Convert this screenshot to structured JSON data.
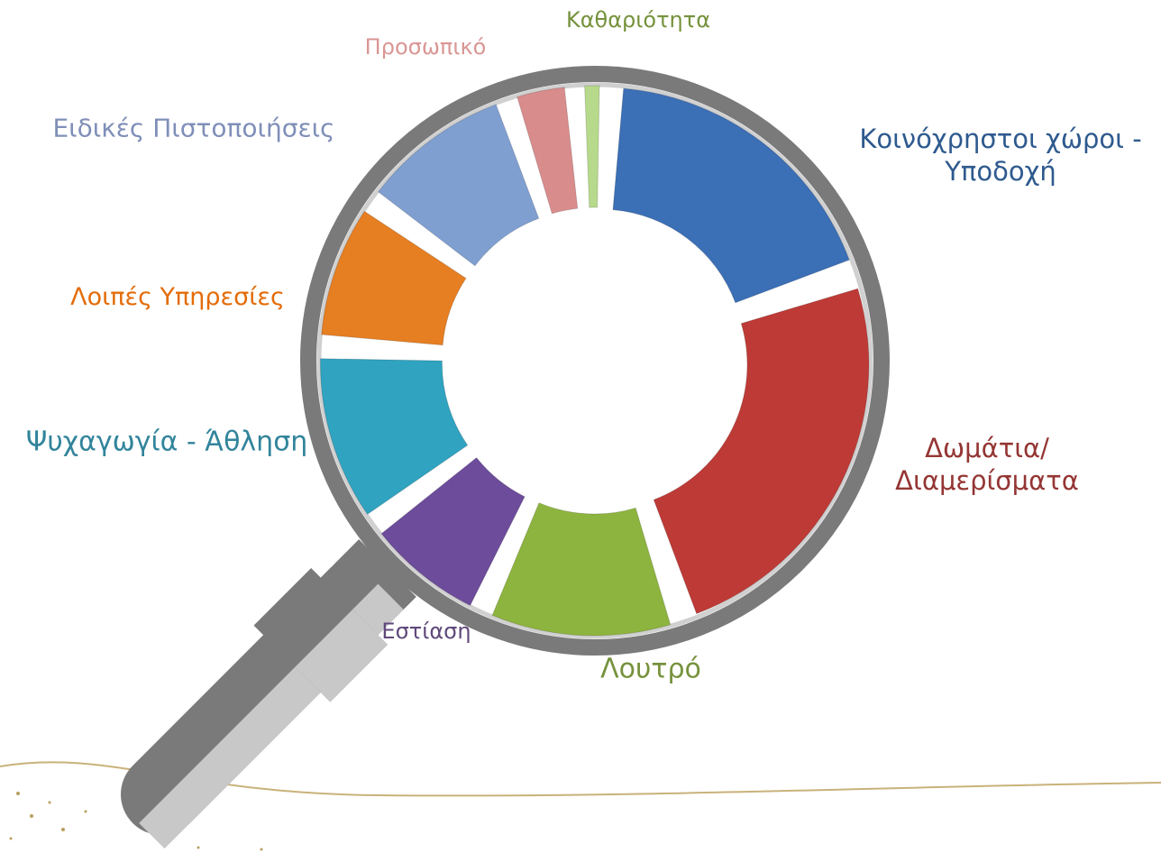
{
  "chart_data": {
    "type": "donut",
    "categories": [
      "Κοινόχρηστοι χώροι - Υποδοχή",
      "Δωμάτια/ Διαμερίσματα",
      "Λουτρό",
      "Εστίαση",
      "Ψυχαγωγία - Άθληση",
      "Λοιπές Υπηρεσίες",
      "Ειδικές Πιστοποιήσεις",
      "Προσωπικό",
      "Καθαριότητα"
    ],
    "values": [
      19,
      25,
      12,
      8,
      11,
      9,
      10,
      4,
      2
    ],
    "colors": [
      "#3b6fb6",
      "#be3a36",
      "#8db43e",
      "#6d4c9c",
      "#2fa3c0",
      "#e67e22",
      "#7f9fd0",
      "#d98c8c",
      "#b7d98b"
    ]
  }
}
